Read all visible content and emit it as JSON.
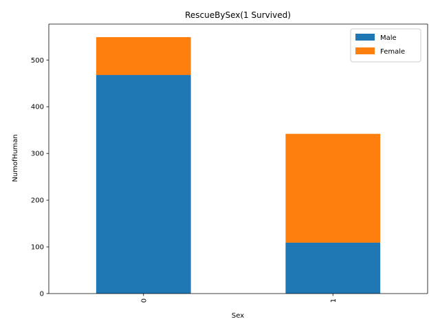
{
  "chart_data": {
    "type": "bar",
    "stacked": true,
    "title": "RescueBySex(1 Survived)",
    "xlabel": "Sex",
    "ylabel": "NumofHuman",
    "categories": [
      "0",
      "1"
    ],
    "series": [
      {
        "name": "Male",
        "values": [
          468,
          109
        ],
        "color": "#1f77b4"
      },
      {
        "name": "Female",
        "values": [
          81,
          233
        ],
        "color": "#ff7f0e"
      }
    ],
    "ylim": [
      0,
      577
    ],
    "yticks": [
      0,
      100,
      200,
      300,
      400,
      500
    ],
    "grid": false,
    "legend_position": "top-right"
  }
}
